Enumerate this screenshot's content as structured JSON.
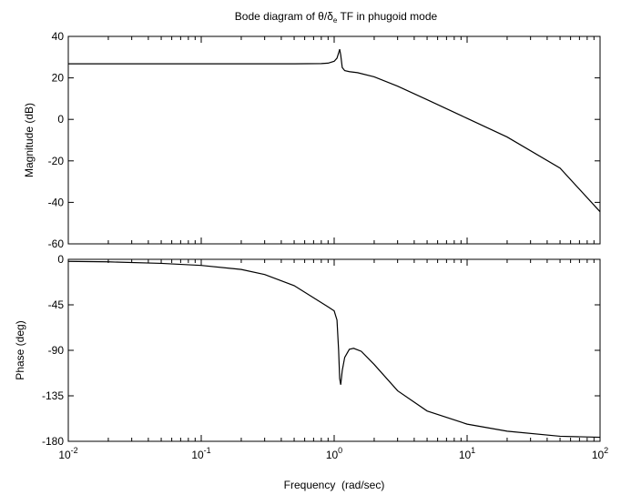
{
  "colors": {
    "background": "#ffffff",
    "axes": "#000000",
    "line": "#000000"
  },
  "chart_data": [
    {
      "type": "line",
      "title": "Bode diagram of θ/δe TF in phugoid mode",
      "title_parts": {
        "pre": "Bode diagram of θ/δ",
        "sub": "e",
        "post": " TF in phugoid mode"
      },
      "xlabel": "",
      "ylabel": "Magnitude (dB)",
      "xscale": "log",
      "xlim": [
        0.01,
        100
      ],
      "ylim": [
        -60,
        40
      ],
      "yticks": [
        "40",
        "20",
        "0",
        "-20",
        "-40",
        "-60"
      ],
      "ytick_values": [
        40,
        20,
        0,
        -20,
        -40,
        -60
      ],
      "grid": false,
      "series": [
        {
          "x": [
            0.01,
            0.02,
            0.05,
            0.1,
            0.2,
            0.5,
            0.8,
            0.9,
            1.0,
            1.05,
            1.08,
            1.1,
            1.12,
            1.15,
            1.2,
            1.3,
            1.5,
            2,
            3,
            5,
            10,
            20,
            50,
            100
          ],
          "y": [
            26.8,
            26.8,
            26.8,
            26.8,
            26.8,
            26.8,
            26.9,
            27.1,
            28.0,
            29.5,
            32.0,
            33.8,
            31.0,
            25.0,
            23.5,
            23.0,
            22.5,
            20.5,
            16.0,
            9.5,
            0.5,
            -8.5,
            -23.5,
            -44.5
          ]
        }
      ]
    },
    {
      "type": "line",
      "xlabel": "Frequency  (rad/sec)",
      "ylabel": "Phase (deg)",
      "xscale": "log",
      "xlim": [
        0.01,
        100
      ],
      "ylim": [
        -180,
        0
      ],
      "xticks": [
        0.01,
        0.1,
        1,
        10,
        100
      ],
      "xtick_base": "10",
      "xtick_exponents": [
        "-2",
        "-1",
        "0",
        "1",
        "2"
      ],
      "yticks": [
        "0",
        "-45",
        "-90",
        "-135",
        "-180"
      ],
      "ytick_values": [
        0,
        -45,
        -90,
        -135,
        -180
      ],
      "grid": false,
      "series": [
        {
          "x": [
            0.01,
            0.02,
            0.05,
            0.1,
            0.2,
            0.3,
            0.5,
            0.7,
            0.9,
            1.0,
            1.05,
            1.08,
            1.1,
            1.12,
            1.15,
            1.2,
            1.3,
            1.4,
            1.6,
            2,
            3,
            5,
            10,
            20,
            50,
            100
          ],
          "y": [
            -2,
            -2.5,
            -4,
            -6,
            -10,
            -15,
            -26,
            -38,
            -47,
            -51,
            -60,
            -90,
            -118,
            -124,
            -110,
            -97,
            -89,
            -88,
            -91,
            -104,
            -130,
            -150,
            -163,
            -170,
            -175,
            -176
          ]
        }
      ]
    }
  ]
}
